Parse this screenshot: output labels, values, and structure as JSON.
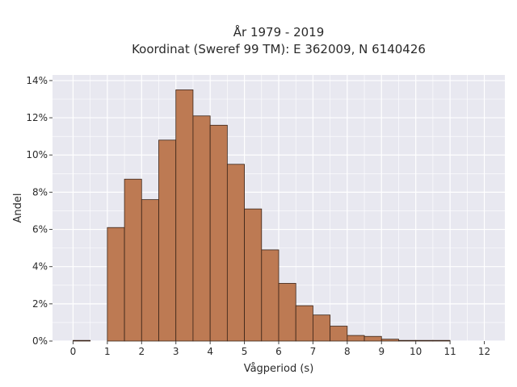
{
  "chart_data": {
    "type": "bar",
    "title_line1": "År 1979 - 2019",
    "title_line2": "Koordinat (Sweref 99 TM): E 362009, N 6140426",
    "xlabel": "Vågperiod (s)",
    "ylabel": "Andel",
    "bin_width": 0.5,
    "bins_start": [
      0,
      1,
      1.5,
      2,
      2.5,
      3,
      3.5,
      4,
      4.5,
      5,
      5.5,
      6,
      6.5,
      7,
      7.5,
      8,
      8.5,
      9,
      9.5,
      10,
      10.5
    ],
    "values": [
      0.0,
      6.1,
      8.7,
      7.6,
      10.8,
      13.5,
      12.1,
      11.6,
      9.5,
      7.1,
      4.9,
      3.1,
      1.9,
      1.4,
      0.8,
      0.3,
      0.25,
      0.1,
      0.03,
      0.02,
      0.02
    ],
    "xlim": [
      -0.6,
      12.6
    ],
    "ylim": [
      0,
      14.3
    ],
    "xticks": [
      "0",
      "1",
      "2",
      "3",
      "4",
      "5",
      "6",
      "7",
      "8",
      "9",
      "10",
      "11",
      "12"
    ],
    "yticks": [
      "0%",
      "2%",
      "4%",
      "6%",
      "8%",
      "10%",
      "12%",
      "14%"
    ],
    "grid": true,
    "bar_color": "#bd7a53",
    "bar_edge_color": "#3a2418",
    "plot_bg": "#e8e8f0"
  }
}
